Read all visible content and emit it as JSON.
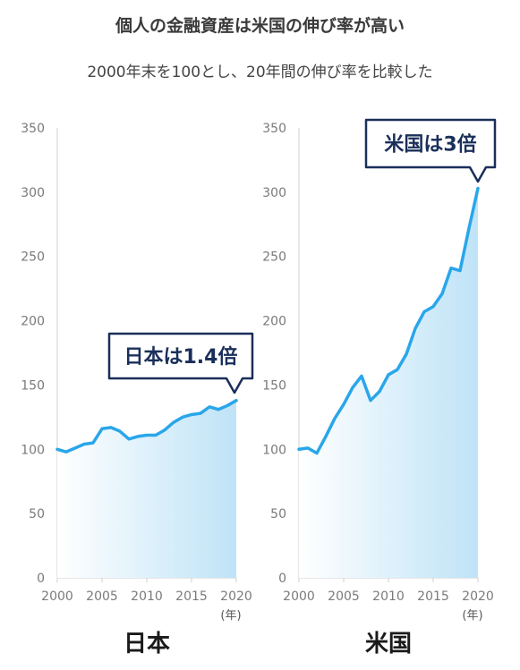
{
  "header": {
    "title": "個人の金融資産は米国の伸び率が高い",
    "subtitle": "2000年末を100とし、20年間の伸び率を比較した"
  },
  "colors": {
    "line": "#2aa6ea",
    "area_top": "#bfe3f7",
    "callout_border": "#1a2f5a",
    "axis": "#cfcfcf"
  },
  "chart_data": [
    {
      "type": "area",
      "name": "日本",
      "callout": "日本は1.4倍",
      "unit": "(年)",
      "ylim": [
        0,
        350
      ],
      "yticks": [
        0,
        50,
        100,
        150,
        200,
        250,
        300,
        350
      ],
      "xlim": [
        2000,
        2020
      ],
      "xticks": [
        2000,
        2005,
        2010,
        2015,
        2020
      ],
      "x": [
        2000,
        2001,
        2002,
        2003,
        2004,
        2005,
        2006,
        2007,
        2008,
        2009,
        2010,
        2011,
        2012,
        2013,
        2014,
        2015,
        2016,
        2017,
        2018,
        2019,
        2020
      ],
      "y": [
        100,
        98,
        101,
        104,
        105,
        116,
        117,
        114,
        108,
        110,
        111,
        111,
        115,
        121,
        125,
        127,
        128,
        133,
        131,
        134,
        138
      ]
    },
    {
      "type": "area",
      "name": "米国",
      "callout": "米国は3倍",
      "unit": "(年)",
      "ylim": [
        0,
        350
      ],
      "yticks": [
        0,
        50,
        100,
        150,
        200,
        250,
        300,
        350
      ],
      "xlim": [
        2000,
        2020
      ],
      "xticks": [
        2000,
        2005,
        2010,
        2015,
        2020
      ],
      "x": [
        2000,
        2001,
        2002,
        2003,
        2004,
        2005,
        2006,
        2007,
        2008,
        2009,
        2010,
        2011,
        2012,
        2013,
        2014,
        2015,
        2016,
        2017,
        2018,
        2019,
        2020
      ],
      "y": [
        100,
        101,
        97,
        110,
        124,
        135,
        148,
        157,
        138,
        145,
        158,
        162,
        174,
        194,
        207,
        211,
        221,
        241,
        239,
        272,
        303
      ]
    }
  ]
}
